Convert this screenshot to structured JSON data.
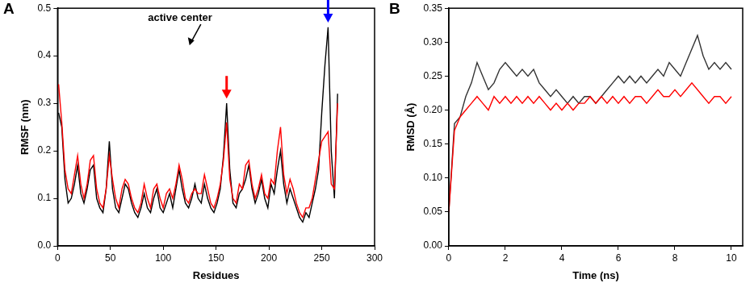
{
  "chart_data": [
    {
      "type": "line",
      "title": "A",
      "x_label": "Residues",
      "y_label": "RMSF (nm)",
      "annotation": "active center",
      "grid": false,
      "xlim": [
        0,
        300
      ],
      "xticks": [
        0,
        50,
        100,
        150,
        200,
        250,
        300
      ],
      "ylim": [
        0,
        0.5
      ],
      "yticks": [
        {
          "value": 0,
          "label": "0.0"
        },
        0.1,
        0.2,
        0.3,
        0.4,
        0.5
      ],
      "x": [
        1,
        4,
        7,
        10,
        13,
        16,
        19,
        22,
        25,
        28,
        31,
        34,
        37,
        40,
        43,
        46,
        49,
        52,
        55,
        58,
        61,
        64,
        67,
        70,
        73,
        76,
        79,
        82,
        85,
        88,
        91,
        94,
        97,
        100,
        103,
        106,
        109,
        112,
        115,
        118,
        121,
        124,
        127,
        130,
        133,
        136,
        139,
        142,
        145,
        148,
        151,
        154,
        157,
        160,
        163,
        166,
        169,
        172,
        175,
        178,
        181,
        184,
        187,
        190,
        193,
        196,
        199,
        202,
        205,
        208,
        211,
        214,
        217,
        220,
        223,
        226,
        229,
        232,
        235,
        238,
        241,
        244,
        247,
        250,
        253,
        256,
        259,
        262,
        265
      ],
      "series": [
        {
          "color": "#000000",
          "values": [
            0.28,
            0.25,
            0.14,
            0.09,
            0.1,
            0.13,
            0.17,
            0.11,
            0.09,
            0.12,
            0.16,
            0.17,
            0.1,
            0.08,
            0.07,
            0.12,
            0.22,
            0.12,
            0.08,
            0.07,
            0.1,
            0.13,
            0.12,
            0.09,
            0.07,
            0.06,
            0.08,
            0.11,
            0.08,
            0.07,
            0.1,
            0.12,
            0.08,
            0.07,
            0.09,
            0.11,
            0.08,
            0.12,
            0.16,
            0.12,
            0.09,
            0.08,
            0.1,
            0.13,
            0.1,
            0.09,
            0.13,
            0.1,
            0.08,
            0.07,
            0.09,
            0.12,
            0.19,
            0.3,
            0.16,
            0.09,
            0.08,
            0.11,
            0.12,
            0.14,
            0.17,
            0.12,
            0.09,
            0.11,
            0.14,
            0.1,
            0.08,
            0.13,
            0.11,
            0.16,
            0.2,
            0.13,
            0.09,
            0.12,
            0.1,
            0.08,
            0.06,
            0.05,
            0.07,
            0.06,
            0.09,
            0.12,
            0.16,
            0.28,
            0.38,
            0.46,
            0.2,
            0.1,
            0.32
          ]
        },
        {
          "color": "#ff0000",
          "values": [
            0.34,
            0.26,
            0.16,
            0.12,
            0.11,
            0.15,
            0.19,
            0.13,
            0.1,
            0.13,
            0.18,
            0.19,
            0.12,
            0.09,
            0.08,
            0.12,
            0.19,
            0.14,
            0.1,
            0.08,
            0.12,
            0.14,
            0.13,
            0.1,
            0.08,
            0.07,
            0.09,
            0.13,
            0.1,
            0.08,
            0.12,
            0.13,
            0.1,
            0.08,
            0.11,
            0.12,
            0.1,
            0.13,
            0.17,
            0.14,
            0.1,
            0.09,
            0.11,
            0.12,
            0.11,
            0.11,
            0.15,
            0.12,
            0.09,
            0.08,
            0.1,
            0.13,
            0.18,
            0.26,
            0.14,
            0.1,
            0.09,
            0.13,
            0.12,
            0.17,
            0.18,
            0.13,
            0.1,
            0.12,
            0.15,
            0.11,
            0.1,
            0.14,
            0.13,
            0.2,
            0.25,
            0.15,
            0.11,
            0.14,
            0.12,
            0.09,
            0.07,
            0.06,
            0.08,
            0.08,
            0.1,
            0.14,
            0.18,
            0.22,
            0.23,
            0.24,
            0.13,
            0.12,
            0.3
          ]
        }
      ],
      "arrows": [
        {
          "x": 160,
          "y": 0.31,
          "color": "#ff0000"
        },
        {
          "x": 256,
          "y": 0.47,
          "color": "#0000ff"
        }
      ]
    },
    {
      "type": "line",
      "title": "B",
      "x_label": "Time (ns)",
      "y_label": "RMSD (Å)",
      "grid": false,
      "xlim": [
        0,
        10.4
      ],
      "xticks": [
        0,
        2,
        4,
        6,
        8,
        10
      ],
      "ylim": [
        0,
        0.35
      ],
      "yticks": [
        {
          "value": 0,
          "label": "0.00"
        },
        0.05,
        {
          "value": 0.1,
          "label": "0.10"
        },
        0.15,
        {
          "value": 0.2,
          "label": "0.20"
        },
        0.25,
        {
          "value": 0.3,
          "label": "0.30"
        },
        0.35
      ],
      "x": [
        0,
        0.2,
        0.4,
        0.6,
        0.8,
        1,
        1.2,
        1.4,
        1.6,
        1.8,
        2,
        2.2,
        2.4,
        2.6,
        2.8,
        3,
        3.2,
        3.4,
        3.6,
        3.8,
        4,
        4.2,
        4.4,
        4.6,
        4.8,
        5,
        5.2,
        5.4,
        5.6,
        5.8,
        6,
        6.2,
        6.4,
        6.6,
        6.8,
        7,
        7.2,
        7.4,
        7.6,
        7.8,
        8,
        8.2,
        8.4,
        8.6,
        8.8,
        9,
        9.2,
        9.4,
        9.6,
        9.8,
        10
      ],
      "series": [
        {
          "color": "#333333",
          "values": [
            0.05,
            0.18,
            0.19,
            0.22,
            0.24,
            0.27,
            0.25,
            0.23,
            0.24,
            0.26,
            0.27,
            0.26,
            0.25,
            0.26,
            0.25,
            0.26,
            0.24,
            0.23,
            0.22,
            0.23,
            0.22,
            0.21,
            0.22,
            0.21,
            0.22,
            0.22,
            0.21,
            0.22,
            0.23,
            0.24,
            0.25,
            0.24,
            0.25,
            0.24,
            0.25,
            0.24,
            0.25,
            0.26,
            0.25,
            0.27,
            0.26,
            0.25,
            0.27,
            0.29,
            0.31,
            0.28,
            0.26,
            0.27,
            0.26,
            0.27,
            0.26
          ]
        },
        {
          "color": "#ff0000",
          "values": [
            0.05,
            0.17,
            0.19,
            0.2,
            0.21,
            0.22,
            0.21,
            0.2,
            0.22,
            0.21,
            0.22,
            0.21,
            0.22,
            0.21,
            0.22,
            0.21,
            0.22,
            0.21,
            0.2,
            0.21,
            0.2,
            0.21,
            0.2,
            0.21,
            0.21,
            0.22,
            0.21,
            0.22,
            0.21,
            0.22,
            0.21,
            0.22,
            0.21,
            0.22,
            0.22,
            0.21,
            0.22,
            0.23,
            0.22,
            0.22,
            0.23,
            0.22,
            0.23,
            0.24,
            0.23,
            0.22,
            0.21,
            0.22,
            0.22,
            0.21,
            0.22
          ]
        }
      ]
    }
  ]
}
